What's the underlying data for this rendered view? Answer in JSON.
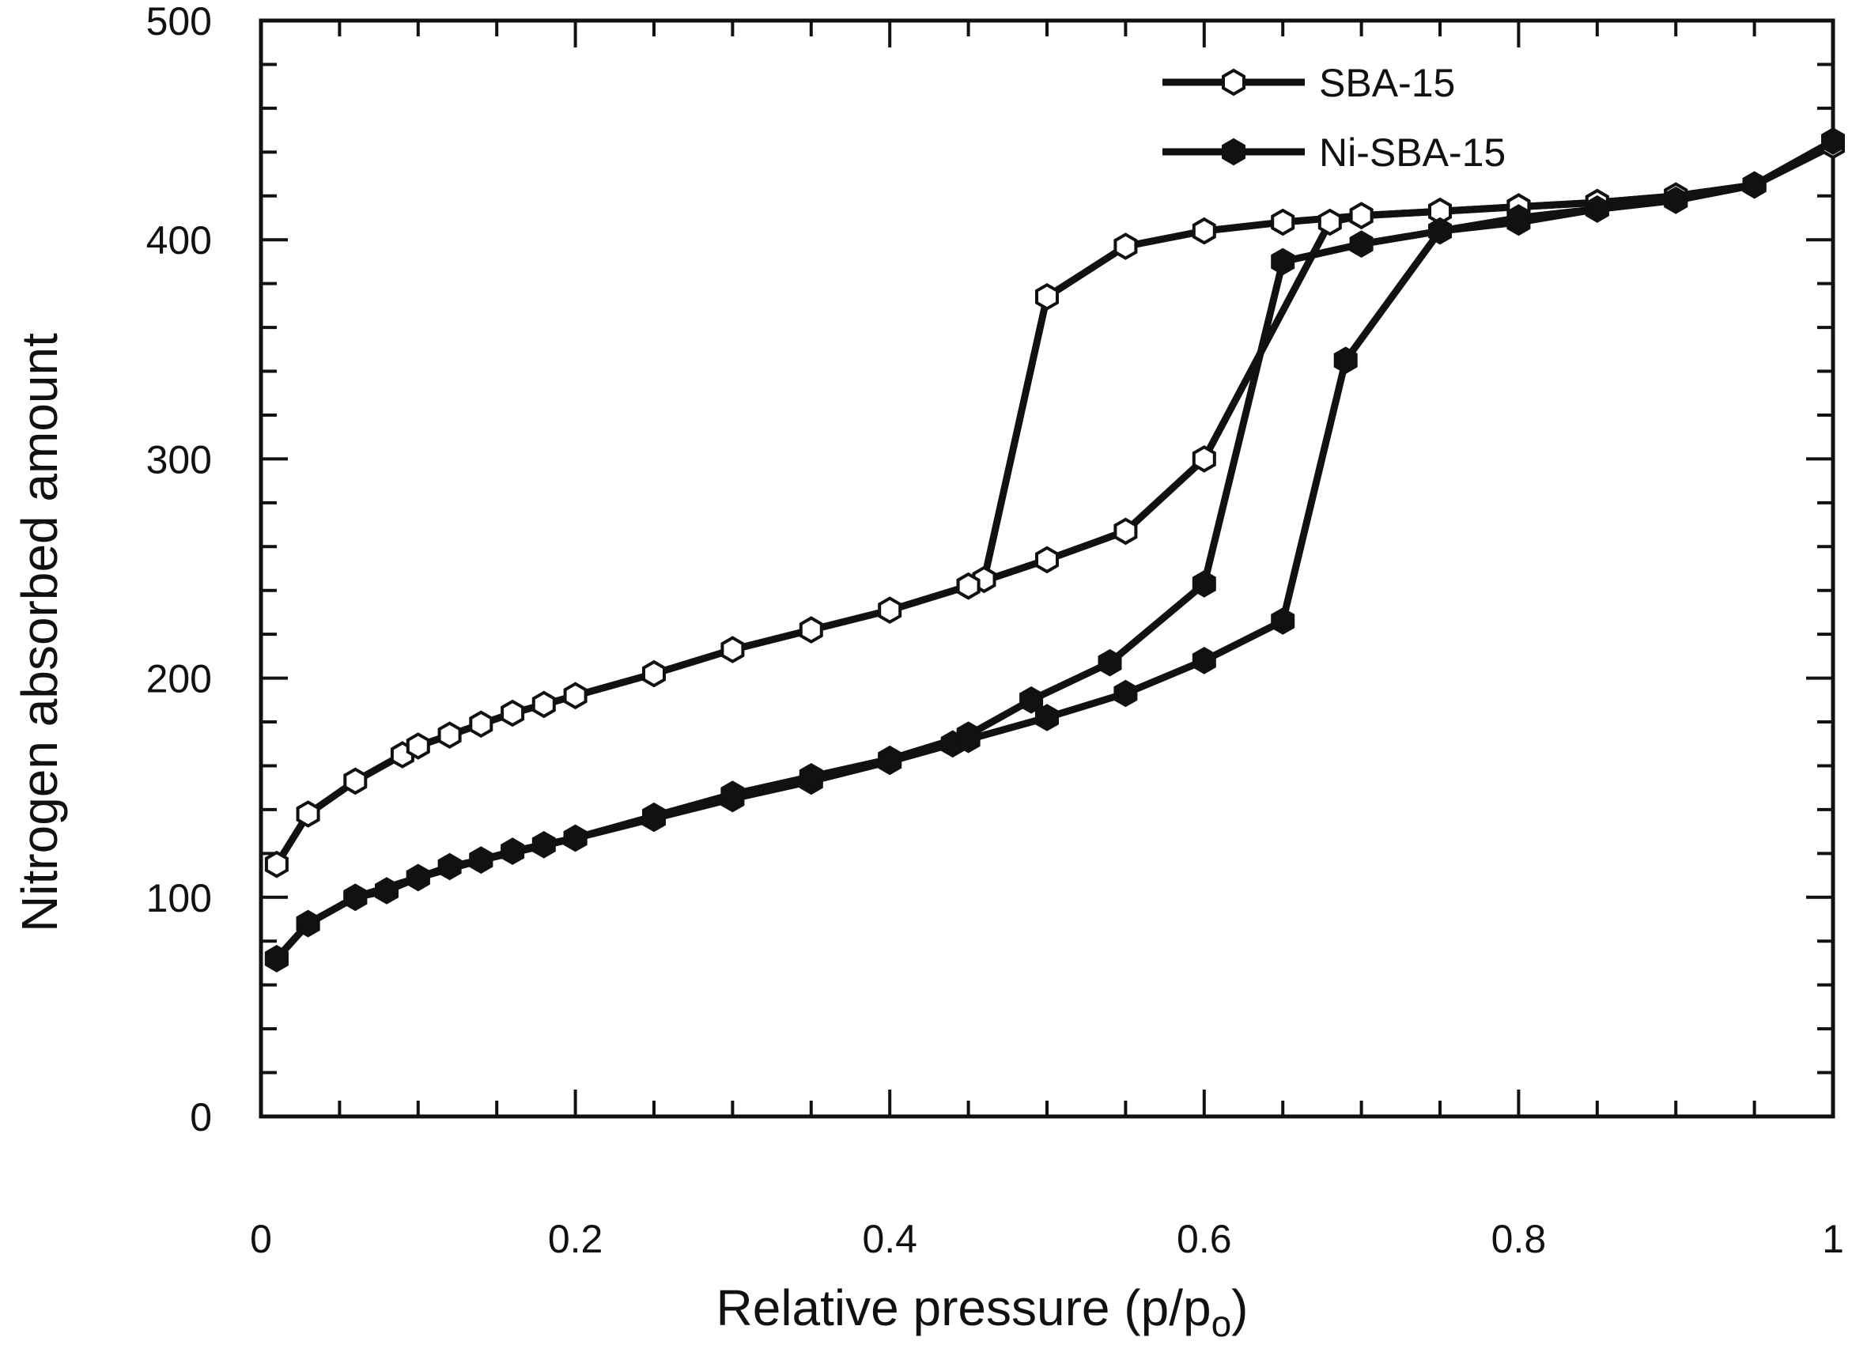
{
  "chart_data": {
    "type": "line",
    "title": "",
    "xlabel": "Relative pressure (p/p",
    "xlabel_sub": "o",
    "xlabel_close": ")",
    "ylabel": "Nitrogen absorbed amount",
    "xlim": [
      0,
      1
    ],
    "ylim": [
      0,
      500
    ],
    "x_ticks": [
      0,
      0.2,
      0.4,
      0.6,
      0.8,
      1
    ],
    "x_tick_labels": [
      "0",
      "0.2",
      "0.4",
      "0.6",
      "0.8",
      "1"
    ],
    "y_ticks": [
      0,
      100,
      200,
      300,
      400,
      500
    ],
    "y_tick_labels": [
      "0",
      "100",
      "200",
      "300",
      "400",
      "500"
    ],
    "grid": false,
    "legend_position": "top-right",
    "series": [
      {
        "name": "SBA-15",
        "marker": "open-hexagon",
        "color": "#111111",
        "adsorption": {
          "x": [
            0.01,
            0.03,
            0.06,
            0.09,
            0.1,
            0.12,
            0.14,
            0.16,
            0.18,
            0.2,
            0.25,
            0.3,
            0.35,
            0.4,
            0.45,
            0.5,
            0.55,
            0.6,
            0.68,
            0.7,
            0.75,
            0.8,
            0.85,
            0.9,
            0.95,
            1.0
          ],
          "y": [
            115,
            138,
            153,
            165,
            169,
            174,
            179,
            184,
            188,
            192,
            202,
            213,
            222,
            231,
            242,
            254,
            267,
            300,
            408,
            411,
            413,
            415,
            417,
            420,
            425,
            443
          ]
        },
        "desorption": {
          "x": [
            1.0,
            0.95,
            0.9,
            0.85,
            0.8,
            0.75,
            0.7,
            0.65,
            0.6,
            0.55,
            0.5,
            0.46,
            0.45
          ],
          "y": [
            443,
            425,
            420,
            417,
            415,
            413,
            411,
            408,
            404,
            397,
            374,
            245,
            242
          ]
        }
      },
      {
        "name": "Ni-SBA-15",
        "marker": "filled-hexagon",
        "color": "#111111",
        "adsorption": {
          "x": [
            0.01,
            0.03,
            0.06,
            0.08,
            0.1,
            0.12,
            0.14,
            0.16,
            0.18,
            0.2,
            0.25,
            0.3,
            0.35,
            0.4,
            0.44,
            0.45,
            0.5,
            0.55,
            0.6,
            0.65,
            0.69,
            0.75,
            0.8,
            0.85,
            0.9,
            0.95,
            1.0
          ],
          "y": [
            72,
            88,
            100,
            103,
            109,
            114,
            117,
            121,
            124,
            127,
            136,
            145,
            153,
            162,
            170,
            172,
            182,
            193,
            208,
            226,
            345,
            404,
            408,
            414,
            418,
            425,
            445
          ]
        },
        "desorption": {
          "x": [
            1.0,
            0.95,
            0.9,
            0.85,
            0.8,
            0.7,
            0.65,
            0.6,
            0.54,
            0.49,
            0.45,
            0.4,
            0.35,
            0.3,
            0.25,
            0.2,
            0.14,
            0.1,
            0.06,
            0.03,
            0.01
          ],
          "y": [
            445,
            425,
            418,
            414,
            410,
            398,
            390,
            243,
            207,
            190,
            174,
            163,
            155,
            147,
            137,
            127,
            117,
            109,
            100,
            88,
            72
          ]
        }
      }
    ]
  }
}
